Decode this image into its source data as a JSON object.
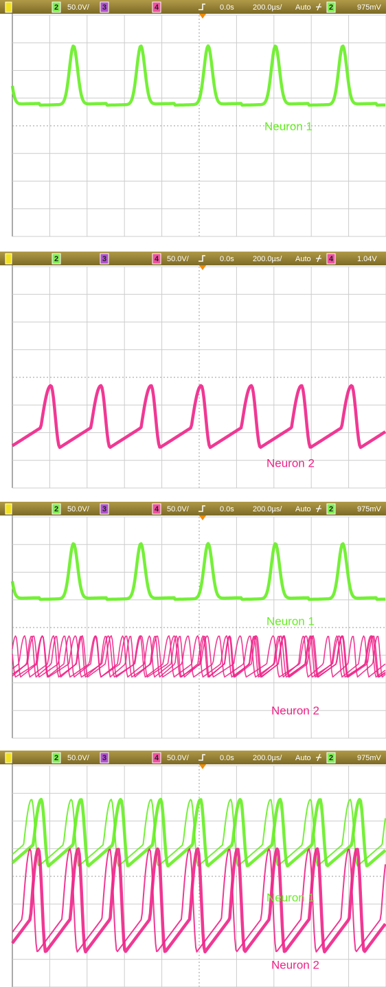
{
  "panels": [
    {
      "header": {
        "ch2": "2",
        "ch2_scale": "50.0V/",
        "ch3": "3",
        "ch4": "4",
        "offset": "0.0s",
        "timebase": "200.0µs/",
        "mode": "Auto",
        "trigger_ch": "2",
        "trigger_level": "975mV"
      },
      "labels": [
        "Neuron 1"
      ]
    },
    {
      "header": {
        "ch2": "2",
        "ch3": "3",
        "ch4": "4",
        "ch4_scale": "50.0V/",
        "offset": "0.0s",
        "timebase": "200.0µs/",
        "mode": "Auto",
        "trigger_ch": "4",
        "trigger_level": "1.04V"
      },
      "labels": [
        "Neuron 2"
      ]
    },
    {
      "header": {
        "ch2": "2",
        "ch2_scale": "50.0V/",
        "ch3": "3",
        "ch4": "4",
        "ch4_scale": "50.0V/",
        "offset": "0.0s",
        "timebase": "200.0µs/",
        "mode": "Auto",
        "trigger_ch": "2",
        "trigger_level": "975mV"
      },
      "labels": [
        "Neuron 1",
        "Neuron 2"
      ]
    },
    {
      "header": {
        "ch2": "2",
        "ch2_scale": "50.0V/",
        "ch3": "3",
        "ch4": "4",
        "ch4_scale": "50.0V/",
        "offset": "0.0s",
        "timebase": "200.0µs/",
        "mode": "Auto",
        "trigger_ch": "2",
        "trigger_level": "975mV"
      },
      "labels": [
        "Neuron 1",
        "Neuron 2"
      ]
    }
  ]
}
